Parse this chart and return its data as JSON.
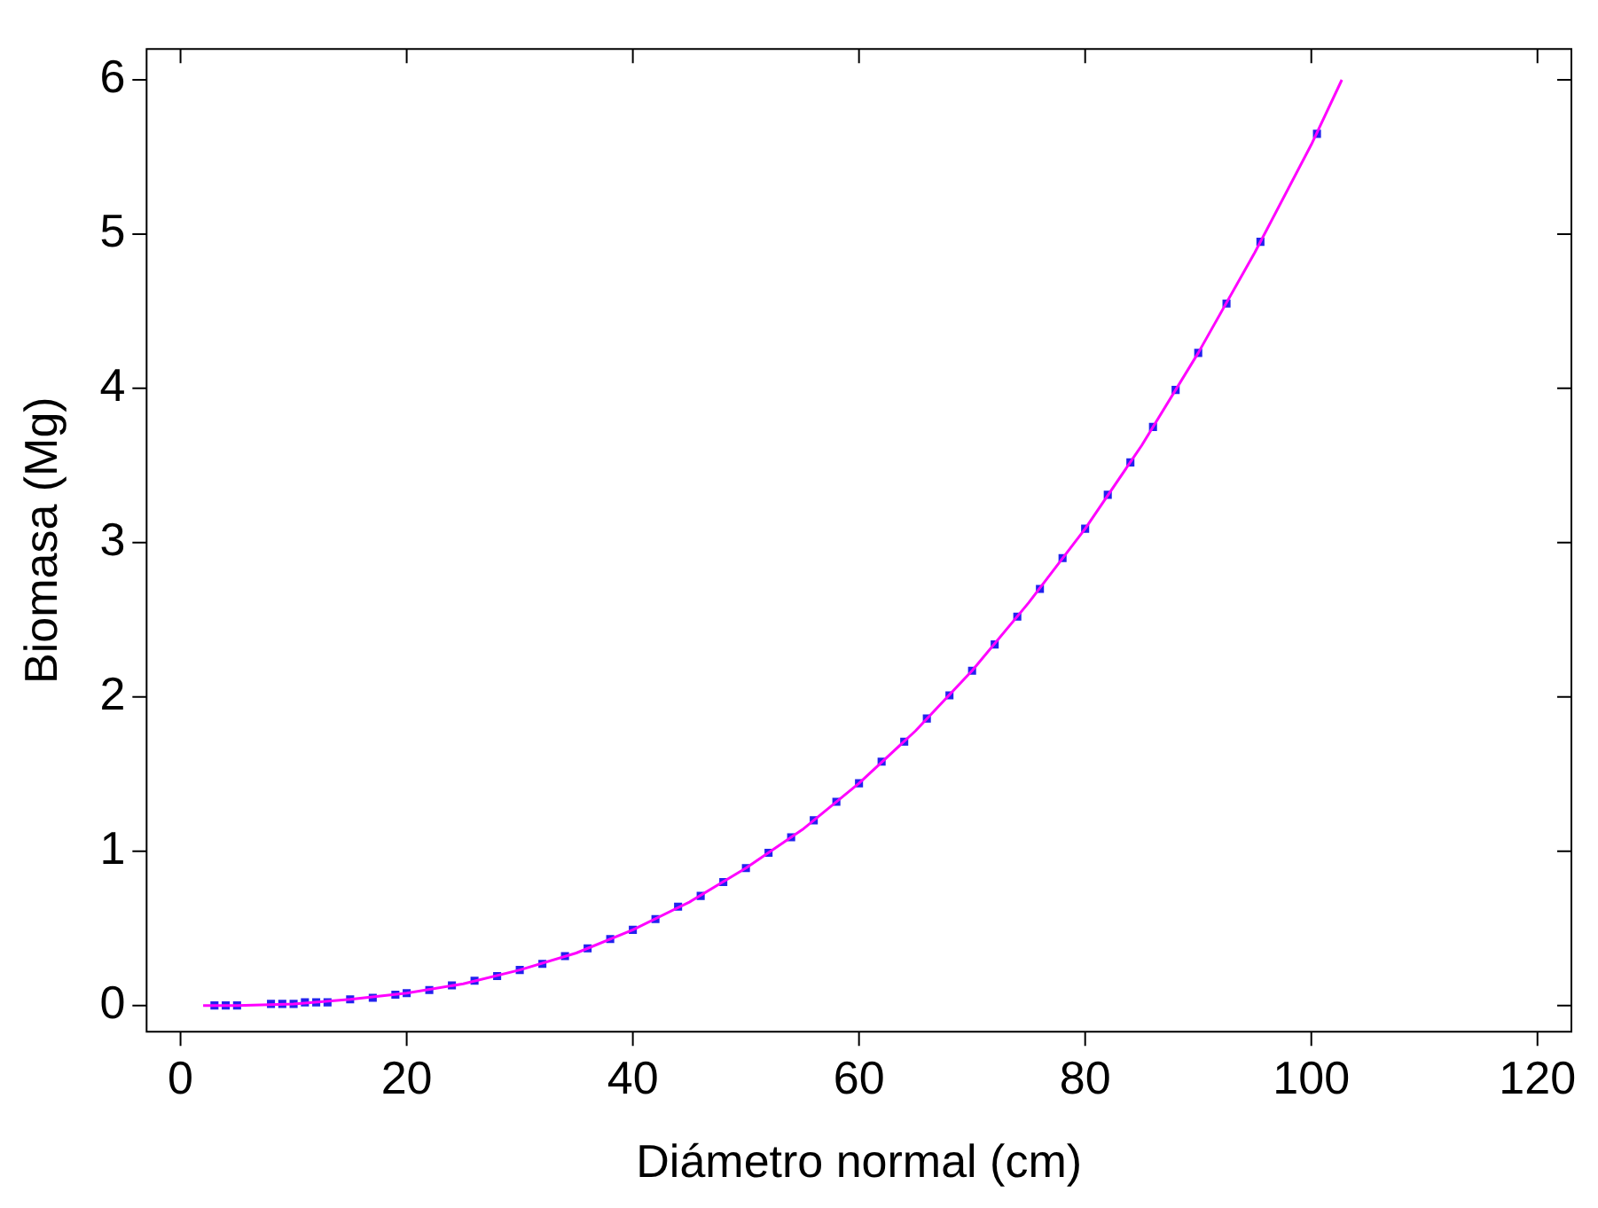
{
  "chart_data": {
    "type": "scatter",
    "xlabel": "Diámetro normal (cm)",
    "ylabel": "Biomasa (Mg)",
    "xlim": [
      -3,
      123
    ],
    "ylim": [
      -0.17,
      6.2
    ],
    "xticks": [
      0,
      20,
      40,
      60,
      80,
      100,
      120
    ],
    "yticks": [
      0,
      1,
      2,
      3,
      4,
      5,
      6
    ],
    "grid": false,
    "legend": false,
    "series": [
      {
        "type": "line",
        "color": "#ff00ff",
        "marker": "none",
        "line_style": "solid",
        "x": [
          2,
          5,
          10,
          15,
          20,
          25,
          30,
          35,
          40,
          45,
          50,
          55,
          60,
          65,
          70,
          75,
          80,
          85,
          90,
          95,
          100,
          102.7
        ],
        "values": [
          0,
          0,
          0.01,
          0.04,
          0.08,
          0.14,
          0.23,
          0.34,
          0.49,
          0.67,
          0.89,
          1.14,
          1.44,
          1.78,
          2.17,
          2.61,
          3.09,
          3.63,
          4.23,
          4.88,
          5.58,
          6.0
        ]
      },
      {
        "type": "scatter",
        "color": "#2222ee",
        "marker": "square",
        "x": [
          3,
          4,
          5,
          8,
          9,
          10,
          11,
          12,
          13,
          15,
          17,
          19,
          20,
          22,
          24,
          26,
          28,
          30,
          32,
          34,
          36,
          38,
          40,
          42,
          44,
          46,
          48,
          50,
          52,
          54,
          56,
          58,
          60,
          62,
          64,
          66,
          68,
          70,
          72,
          74,
          76,
          78,
          80,
          82,
          84,
          86,
          88,
          90,
          92.5,
          95.5,
          100.5
        ],
        "values": [
          0,
          0,
          0,
          0.01,
          0.01,
          0.01,
          0.02,
          0.02,
          0.02,
          0.04,
          0.05,
          0.07,
          0.08,
          0.1,
          0.13,
          0.16,
          0.19,
          0.23,
          0.27,
          0.32,
          0.37,
          0.43,
          0.49,
          0.56,
          0.64,
          0.71,
          0.8,
          0.89,
          0.99,
          1.09,
          1.2,
          1.32,
          1.44,
          1.58,
          1.71,
          1.86,
          2.01,
          2.17,
          2.34,
          2.52,
          2.7,
          2.9,
          3.09,
          3.31,
          3.52,
          3.75,
          3.99,
          4.23,
          4.55,
          4.95,
          5.65
        ]
      }
    ]
  }
}
